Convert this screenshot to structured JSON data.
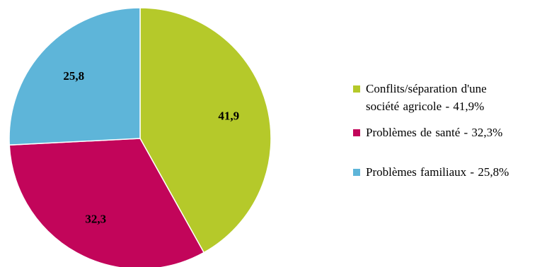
{
  "chart_data": {
    "type": "pie",
    "title": "",
    "slices": [
      {
        "name": "Conflits/séparation d'une société agricole - 41,9%",
        "value": 41.9,
        "label": "41,9",
        "color": "#b5c92a"
      },
      {
        "name": "Problèmes de santé - 32,3%",
        "value": 32.3,
        "label": "32,3",
        "color": "#c2055a"
      },
      {
        "name": "Problèmes familiaux - 25,8%",
        "value": 25.8,
        "label": "25,8",
        "color": "#5eb5d9"
      }
    ],
    "start_angle": "12 o'clock",
    "direction": "clockwise",
    "legend_position": "right"
  },
  "legend": {
    "items": [
      {
        "line1": "Conflits/séparation d'une",
        "line2": "société agricole - 41,9%"
      },
      {
        "line1": "Problèmes de santé - 32,3%"
      },
      {
        "line1": "Problèmes familiaux - 25,8%"
      }
    ]
  }
}
